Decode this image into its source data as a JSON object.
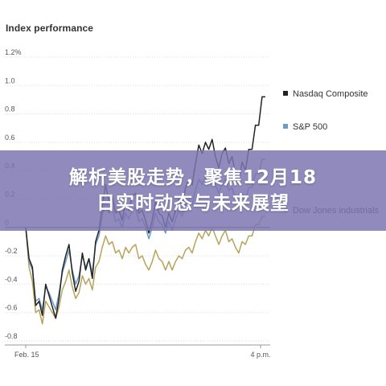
{
  "chart_data": {
    "type": "line",
    "title": "Index performance",
    "ylim": [
      -0.8,
      1.2
    ],
    "y_ticks": [
      "1.2%",
      "1.0",
      "0.8",
      "0.6",
      "0.4",
      "0.2",
      "0",
      "-0.2",
      "-0.4",
      "-0.6",
      "-0.8"
    ],
    "y_tick_values": [
      1.2,
      1.0,
      0.8,
      0.6,
      0.4,
      0.2,
      0,
      -0.2,
      -0.4,
      -0.6,
      -0.8
    ],
    "x_ticks": [
      "Feb. 15",
      "4 p.m."
    ],
    "grid": "horizontal",
    "legend_position": "right",
    "series": [
      {
        "name": "Nasdaq Composite",
        "color": "#222222",
        "values": [
          0.0,
          -0.22,
          -0.28,
          -0.55,
          -0.52,
          -0.62,
          -0.4,
          -0.48,
          -0.56,
          -0.64,
          -0.5,
          -0.3,
          -0.2,
          -0.12,
          -0.32,
          -0.45,
          -0.38,
          -0.18,
          -0.3,
          -0.22,
          -0.36,
          -0.1,
          -0.02,
          0.15,
          0.3,
          0.18,
          0.22,
          0.1,
          0.12,
          0.05,
          0.18,
          0.12,
          0.22,
          0.24,
          0.1,
          0.12,
          0.05,
          -0.04,
          0.05,
          0.18,
          0.1,
          0.08,
          0.0,
          0.1,
          0.04,
          0.12,
          0.2,
          0.16,
          0.28,
          0.34,
          0.3,
          0.45,
          0.58,
          0.52,
          0.6,
          0.55,
          0.62,
          0.5,
          0.42,
          0.52,
          0.56,
          0.45,
          0.5,
          0.38,
          0.32,
          0.46,
          0.4,
          0.55,
          0.55,
          0.72,
          0.72,
          0.92,
          0.92
        ]
      },
      {
        "name": "S&P 500",
        "color": "#6e9bc8",
        "values": [
          0.0,
          -0.24,
          -0.3,
          -0.52,
          -0.5,
          -0.58,
          -0.42,
          -0.46,
          -0.52,
          -0.58,
          -0.46,
          -0.32,
          -0.24,
          -0.16,
          -0.3,
          -0.4,
          -0.34,
          -0.2,
          -0.28,
          -0.22,
          -0.32,
          -0.12,
          -0.06,
          0.08,
          0.2,
          0.1,
          0.14,
          0.04,
          0.06,
          0.0,
          0.1,
          0.06,
          0.12,
          0.14,
          0.04,
          0.06,
          0.0,
          -0.08,
          0.0,
          0.1,
          0.04,
          0.02,
          -0.04,
          0.04,
          -0.02,
          0.06,
          0.12,
          0.08,
          0.16,
          0.2,
          0.16,
          0.26,
          0.34,
          0.3,
          0.36,
          0.32,
          0.38,
          0.3,
          0.24,
          0.3,
          0.34,
          0.26,
          0.28,
          0.2,
          0.16,
          0.24,
          0.2,
          0.28,
          0.28,
          0.38,
          0.38,
          0.48,
          0.48
        ]
      },
      {
        "name": "Dow Jones industrials",
        "color": "#b8a35a",
        "values": [
          0.0,
          -0.28,
          -0.38,
          -0.6,
          -0.58,
          -0.68,
          -0.52,
          -0.56,
          -0.6,
          -0.64,
          -0.56,
          -0.44,
          -0.38,
          -0.3,
          -0.42,
          -0.5,
          -0.46,
          -0.34,
          -0.4,
          -0.36,
          -0.44,
          -0.28,
          -0.24,
          -0.14,
          -0.06,
          -0.12,
          -0.1,
          -0.18,
          -0.16,
          -0.22,
          -0.14,
          -0.18,
          -0.14,
          -0.12,
          -0.22,
          -0.2,
          -0.26,
          -0.3,
          -0.24,
          -0.16,
          -0.22,
          -0.24,
          -0.3,
          -0.24,
          -0.3,
          -0.24,
          -0.2,
          -0.22,
          -0.16,
          -0.14,
          -0.18,
          -0.1,
          -0.04,
          -0.08,
          -0.02,
          -0.06,
          0.0,
          -0.06,
          -0.12,
          -0.06,
          -0.02,
          -0.1,
          -0.08,
          -0.14,
          -0.18,
          -0.1,
          -0.12,
          -0.06,
          -0.06,
          0.02,
          0.02,
          0.08,
          0.08
        ]
      }
    ]
  },
  "banner": {
    "line1": "解析美股走势，聚焦12月18",
    "line2": "日实时动态与未来展望"
  }
}
